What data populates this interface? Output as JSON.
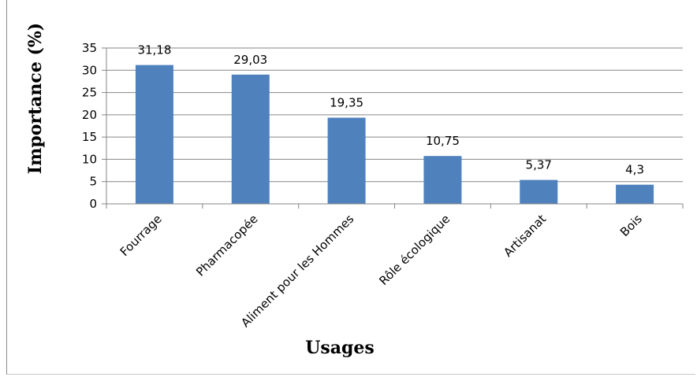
{
  "chart_data": {
    "type": "bar",
    "categories": [
      "Fourrage",
      "Pharmacopée",
      "Aliment pour les Hommes",
      "Rôle écologique",
      "Artisanat",
      "Bois"
    ],
    "values": [
      31.18,
      29.03,
      19.35,
      10.75,
      5.37,
      4.3
    ],
    "data_labels": [
      "31,18",
      "29,03",
      "19,35",
      "10,75",
      "5,37",
      "4,3"
    ],
    "xlabel": "Usages",
    "ylabel": "Importance (%)",
    "ylim": [
      0,
      35
    ],
    "yticks": [
      0,
      5,
      10,
      15,
      20,
      25,
      30,
      35
    ],
    "grid": true,
    "bar_color": "#4f81bd"
  }
}
